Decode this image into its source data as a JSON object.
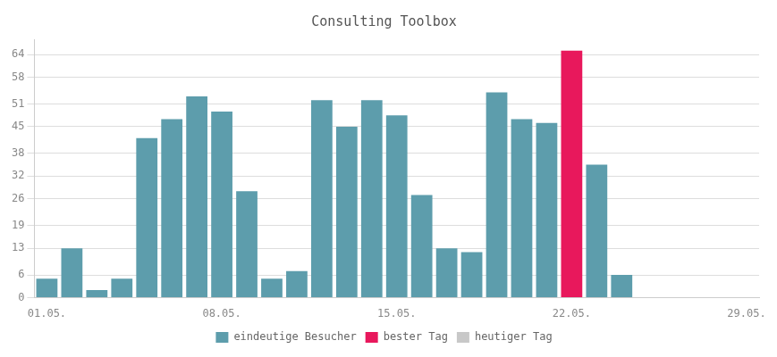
{
  "chart_data": {
    "type": "bar",
    "title": "Consulting Toolbox",
    "categories": [
      "01.05.",
      null,
      null,
      null,
      null,
      null,
      null,
      "08.05.",
      null,
      null,
      null,
      null,
      null,
      null,
      "15.05.",
      null,
      null,
      null,
      null,
      null,
      null,
      "22.05.",
      null,
      null,
      null,
      null,
      null,
      null,
      "29.05."
    ],
    "series": [
      {
        "name": "eindeutige Besucher",
        "color": "#5d9dac",
        "values": [
          5,
          13,
          2,
          5,
          42,
          47,
          53,
          49,
          28,
          5,
          7,
          52,
          45,
          52,
          48,
          27,
          13,
          12,
          54,
          47,
          46,
          null,
          35,
          6,
          null,
          null,
          null,
          null,
          null
        ]
      },
      {
        "name": "bester Tag",
        "color": "#e8185c",
        "values": [
          null,
          null,
          null,
          null,
          null,
          null,
          null,
          null,
          null,
          null,
          null,
          null,
          null,
          null,
          null,
          null,
          null,
          null,
          null,
          null,
          null,
          65,
          null,
          null,
          null,
          null,
          null,
          null,
          null
        ]
      },
      {
        "name": "heutiger Tag",
        "color": "#c8c8c8",
        "values": [
          null,
          null,
          null,
          null,
          null,
          null,
          null,
          null,
          null,
          null,
          null,
          null,
          null,
          null,
          null,
          null,
          null,
          null,
          null,
          null,
          null,
          null,
          null,
          null,
          null,
          null,
          null,
          null,
          null
        ]
      }
    ],
    "ylim": [
      0,
      68
    ],
    "yticks": [
      0,
      6,
      13,
      19,
      26,
      32,
      38,
      45,
      51,
      58,
      64
    ],
    "grid": true,
    "legend": "bottom"
  }
}
